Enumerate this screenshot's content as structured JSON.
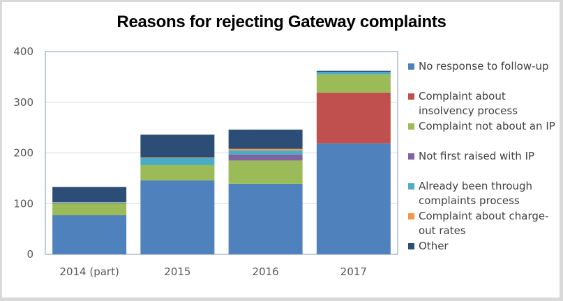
{
  "chart_data": {
    "type": "bar",
    "stacked": true,
    "title": "Reasons for rejecting Gateway complaints",
    "xlabel": "",
    "ylabel": "",
    "ylim": [
      0,
      400
    ],
    "yticks": [
      0,
      100,
      200,
      300,
      400
    ],
    "grid": true,
    "legend_position": "right",
    "categories": [
      "2014 (part)",
      "2015",
      "2016",
      "2017"
    ],
    "series": [
      {
        "name": "No response to follow-up",
        "color": "#4f81bd",
        "values": [
          77,
          146,
          139,
          219
        ]
      },
      {
        "name": "Complaint about insolvency process",
        "color": "#c0504d",
        "values": [
          0,
          0,
          0,
          100
        ]
      },
      {
        "name": "Complaint not about an IP",
        "color": "#9bbb59",
        "values": [
          22,
          30,
          46,
          36
        ]
      },
      {
        "name": "Not first raised with IP",
        "color": "#8064a2",
        "values": [
          0,
          0,
          12,
          0
        ]
      },
      {
        "name": "Already been through complaints process",
        "color": "#4bacc6",
        "values": [
          3,
          14,
          8,
          5
        ]
      },
      {
        "name": "Complaint about charge-out rates",
        "color": "#f79646",
        "values": [
          1,
          1,
          3,
          0
        ]
      },
      {
        "name": "Other",
        "color": "#2c4d75",
        "values": [
          30,
          45,
          38,
          2
        ]
      }
    ]
  },
  "legend": {
    "items": [
      {
        "label_lines": [
          "No response to follow-up"
        ]
      },
      {
        "label_lines": [
          "Complaint about",
          "insolvency process"
        ]
      },
      {
        "label_lines": [
          "Complaint not about an IP"
        ]
      },
      {
        "label_lines": [
          "Not first raised with IP"
        ]
      },
      {
        "label_lines": [
          "Already been through",
          "complaints process"
        ]
      },
      {
        "label_lines": [
          "Complaint about charge-",
          "out rates"
        ]
      },
      {
        "label_lines": [
          "Other"
        ]
      }
    ]
  }
}
